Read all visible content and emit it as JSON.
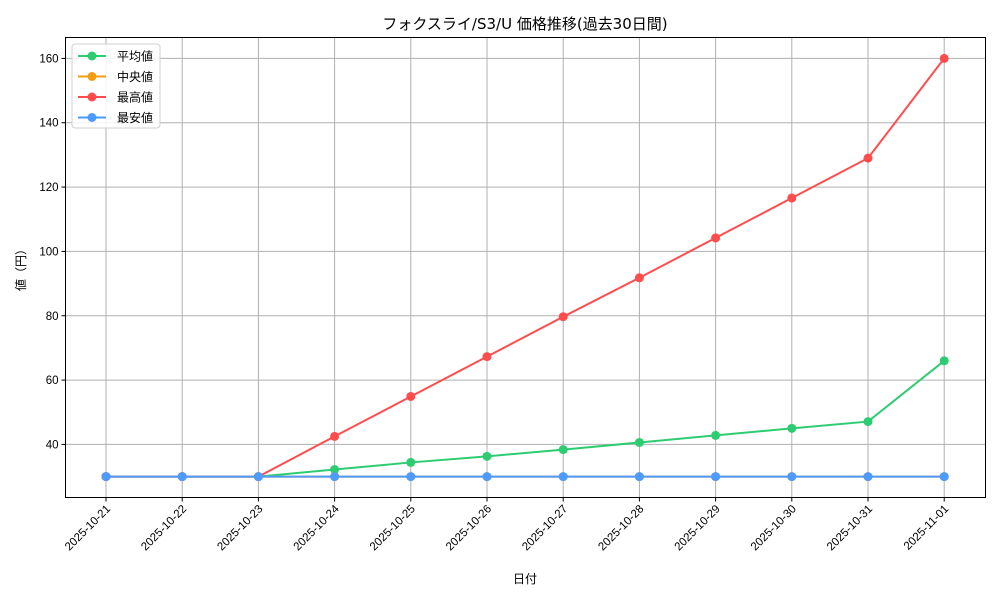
{
  "chart_data": {
    "type": "line",
    "title": "フォクスライ/S3/U 価格推移(過去30日間)",
    "xlabel": "日付",
    "ylabel": "値（円）",
    "categories": [
      "2025-10-21",
      "2025-10-22",
      "2025-10-23",
      "2025-10-24",
      "2025-10-25",
      "2025-10-26",
      "2025-10-27",
      "2025-10-28",
      "2025-10-29",
      "2025-10-30",
      "2025-10-31",
      "2025-11-01"
    ],
    "yticks": [
      40,
      60,
      80,
      100,
      120,
      140,
      160
    ],
    "ylim": [
      23.5,
      166.5
    ],
    "grid": true,
    "legend_position": "upper left",
    "series": [
      {
        "name": "平均値",
        "color": "#2ecc71",
        "values": [
          30,
          30,
          30,
          32.2,
          34.4,
          36.3,
          38.4,
          40.6,
          42.8,
          45.0,
          47.1,
          66.0
        ]
      },
      {
        "name": "中央値",
        "color": "#f39c12",
        "values": [
          30,
          30,
          30,
          30,
          30,
          30,
          30,
          30,
          30,
          30,
          30,
          30
        ]
      },
      {
        "name": "最高値",
        "color": "#ff4d4d",
        "values": [
          30,
          30,
          30,
          42.5,
          54.9,
          67.3,
          79.7,
          91.8,
          104.2,
          116.6,
          129.0,
          160.0
        ]
      },
      {
        "name": "最安値",
        "color": "#4d9bff",
        "values": [
          30,
          30,
          30,
          30,
          30,
          30,
          30,
          30,
          30,
          30,
          30,
          30
        ]
      }
    ]
  }
}
